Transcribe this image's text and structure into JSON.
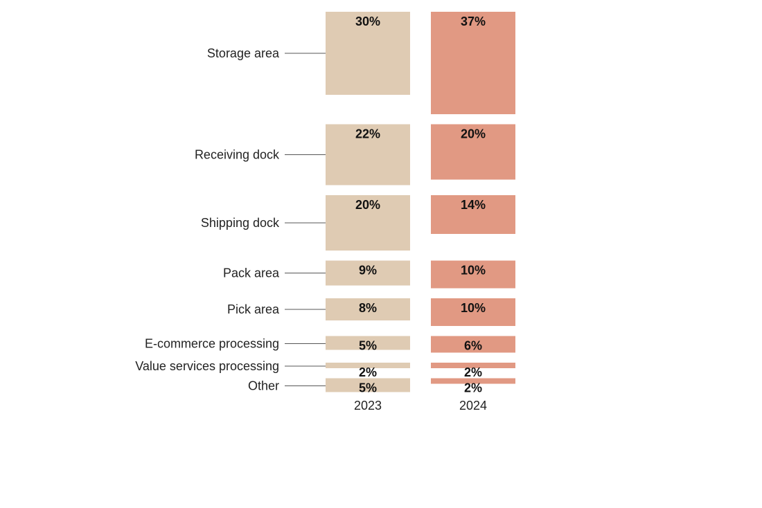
{
  "chart_data": {
    "type": "bar",
    "categories": [
      "Storage area",
      "Receiving dock",
      "Shipping dock",
      "Pack area",
      "Pick area",
      "E-commerce processing",
      "Value services processing",
      "Other"
    ],
    "series": [
      {
        "name": "2023",
        "values": [
          30,
          22,
          20,
          9,
          8,
          5,
          2,
          5
        ],
        "labels": [
          "30%",
          "22%",
          "20%",
          "9%",
          "8%",
          "5%",
          "2%",
          "5%"
        ],
        "color": "#dfcbb3"
      },
      {
        "name": "2024",
        "values": [
          37,
          20,
          14,
          10,
          10,
          6,
          2,
          2
        ],
        "labels": [
          "37%",
          "20%",
          "14%",
          "10%",
          "10%",
          "6%",
          "2%",
          "2%"
        ],
        "color": "#e19983"
      }
    ],
    "unit": "%",
    "legend": "none"
  }
}
